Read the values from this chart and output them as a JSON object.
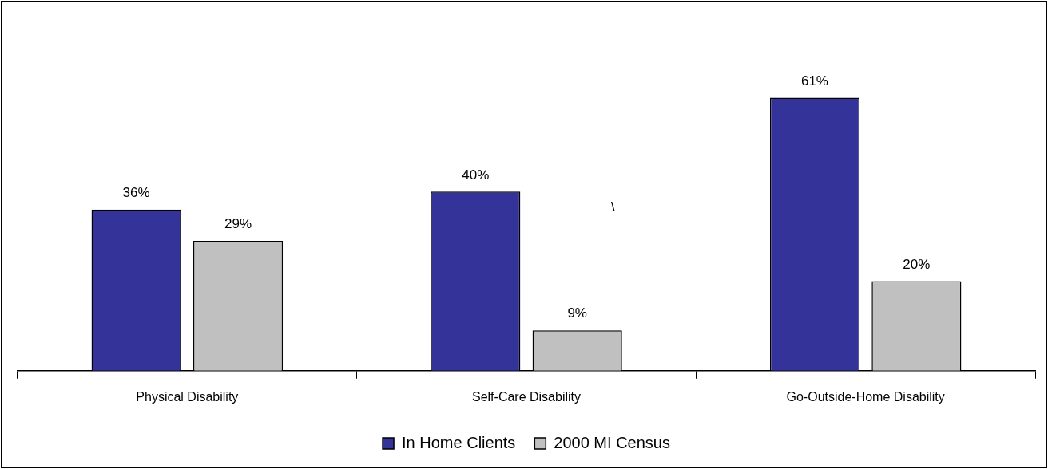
{
  "chart_data": {
    "type": "bar",
    "categories": [
      "Physical Disability",
      "Self-Care Disability",
      "Go-Outside-Home Disability"
    ],
    "series": [
      {
        "name": "In Home Clients",
        "color": "#333399",
        "values": [
          36,
          40,
          61
        ],
        "value_labels": [
          "36%",
          "40%",
          "61%"
        ]
      },
      {
        "name": "2000 MI Census",
        "color": "#c0c0c0",
        "values": [
          29,
          9,
          20
        ],
        "value_labels": [
          "29%",
          "9%",
          "20%"
        ]
      }
    ],
    "annotations": [
      "\\"
    ],
    "legend": "bottom",
    "grid": false
  }
}
